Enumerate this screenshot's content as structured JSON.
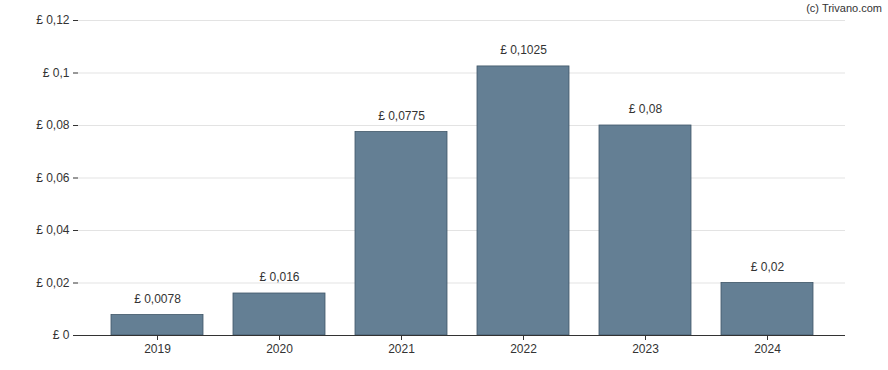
{
  "chart_data": {
    "type": "bar",
    "caption": "(c) Trivano.com",
    "categories": [
      "2019",
      "2020",
      "2021",
      "2022",
      "2023",
      "2024"
    ],
    "values": [
      0.0078,
      0.016,
      0.0775,
      0.1025,
      0.08,
      0.02
    ],
    "value_labels": [
      "£ 0,0078",
      "£ 0,016",
      "£ 0,0775",
      "£ 0,1025",
      "£ 0,08",
      "£ 0,02"
    ],
    "data_labels": true,
    "color": "#647f94",
    "ylim": [
      0,
      0.12
    ],
    "yticks": [
      {
        "value": 0,
        "label": "£ 0"
      },
      {
        "value": 0.02,
        "label": "£ 0,02"
      },
      {
        "value": 0.04,
        "label": "£ 0,04"
      },
      {
        "value": 0.06,
        "label": "£ 0,06"
      },
      {
        "value": 0.08,
        "label": "£ 0,08"
      },
      {
        "value": 0.1,
        "label": "£ 0,1"
      },
      {
        "value": 0.12,
        "label": "£ 0,12"
      }
    ],
    "grid": true
  }
}
